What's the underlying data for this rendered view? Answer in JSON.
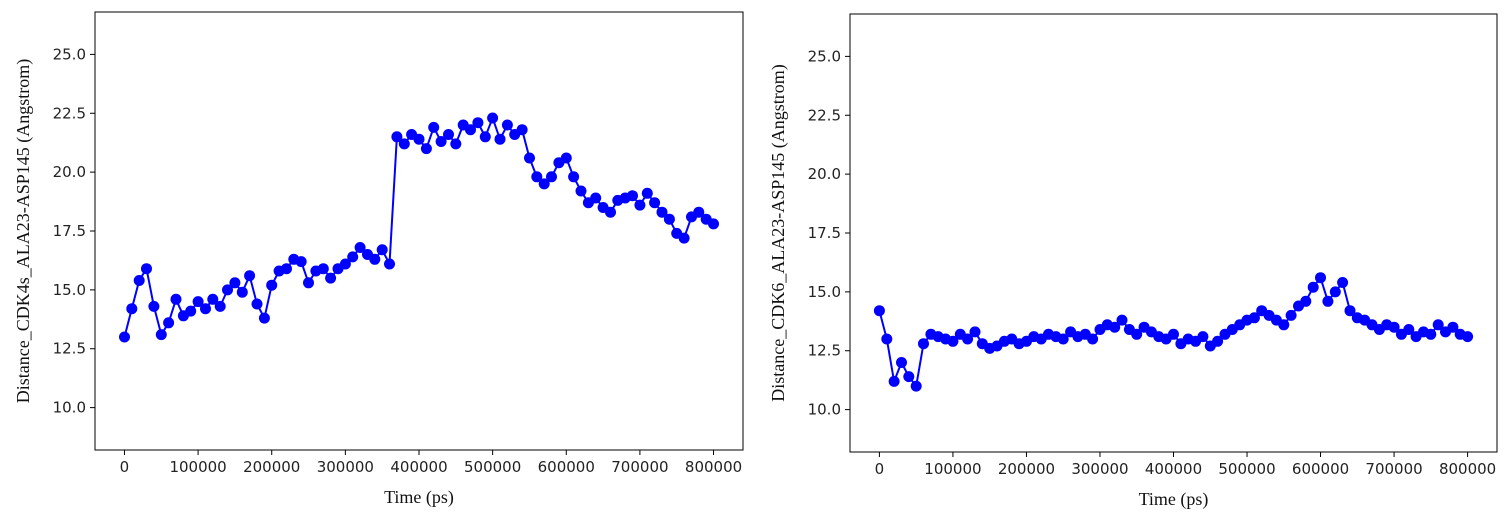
{
  "chart_data": [
    {
      "type": "line",
      "title": "",
      "xlabel": "Time (ps)",
      "ylabel": "Distance_CDK4s_ALA23-ASP145 (Angstrom)",
      "xlim": [
        -40000,
        840000
      ],
      "ylim": [
        8.2,
        26.8
      ],
      "xticks": [
        0,
        100000,
        200000,
        300000,
        400000,
        500000,
        600000,
        700000,
        800000
      ],
      "yticks": [
        "10.0",
        "12.5",
        "15.0",
        "17.5",
        "20.0",
        "22.5",
        "25.0"
      ],
      "grid": false,
      "marker": "circle",
      "series": [
        {
          "color": "#0000ff",
          "x": [
            0,
            10000,
            20000,
            30000,
            40000,
            50000,
            60000,
            70000,
            80000,
            90000,
            100000,
            110000,
            120000,
            130000,
            140000,
            150000,
            160000,
            170000,
            180000,
            190000,
            200000,
            210000,
            220000,
            230000,
            240000,
            250000,
            260000,
            270000,
            280000,
            290000,
            300000,
            310000,
            320000,
            330000,
            340000,
            350000,
            360000,
            370000,
            380000,
            390000,
            400000,
            410000,
            420000,
            430000,
            440000,
            450000,
            460000,
            470000,
            480000,
            490000,
            500000,
            510000,
            520000,
            530000,
            540000,
            550000,
            560000,
            570000,
            580000,
            590000,
            600000,
            610000,
            620000,
            630000,
            640000,
            650000,
            660000,
            670000,
            680000,
            690000,
            700000,
            710000,
            720000,
            730000,
            740000,
            750000,
            760000,
            770000,
            780000,
            790000,
            800000
          ],
          "y": [
            13.0,
            14.2,
            15.4,
            15.9,
            14.3,
            13.1,
            13.6,
            14.6,
            13.9,
            14.1,
            14.5,
            14.2,
            14.6,
            14.3,
            15.0,
            15.3,
            14.9,
            15.6,
            14.4,
            13.8,
            15.2,
            15.8,
            15.9,
            16.3,
            16.2,
            15.3,
            15.8,
            15.9,
            15.5,
            15.9,
            16.1,
            16.4,
            16.8,
            16.5,
            16.3,
            16.7,
            16.1,
            21.5,
            21.2,
            21.6,
            21.4,
            21.0,
            21.9,
            21.3,
            21.6,
            21.2,
            22.0,
            21.8,
            22.1,
            21.5,
            22.3,
            21.4,
            22.0,
            21.6,
            21.8,
            20.6,
            19.8,
            19.5,
            19.8,
            20.4,
            20.6,
            19.8,
            19.2,
            18.7,
            18.9,
            18.5,
            18.3,
            18.8,
            18.9,
            19.0,
            18.6,
            19.1,
            18.7,
            18.3,
            18.0,
            17.4,
            17.2,
            18.1,
            18.3,
            18.0,
            17.8
          ]
        }
      ]
    },
    {
      "type": "line",
      "title": "",
      "xlabel": "Time (ps)",
      "ylabel": "Distance_CDK6_ALA23-ASP145 (Angstrom)",
      "xlim": [
        -40000,
        840000
      ],
      "ylim": [
        8.2,
        26.8
      ],
      "xticks": [
        0,
        100000,
        200000,
        300000,
        400000,
        500000,
        600000,
        700000,
        800000
      ],
      "yticks": [
        "10.0",
        "12.5",
        "15.0",
        "17.5",
        "20.0",
        "22.5",
        "25.0"
      ],
      "grid": false,
      "marker": "circle",
      "series": [
        {
          "color": "#0000ff",
          "x": [
            0,
            10000,
            20000,
            30000,
            40000,
            50000,
            60000,
            70000,
            80000,
            90000,
            100000,
            110000,
            120000,
            130000,
            140000,
            150000,
            160000,
            170000,
            180000,
            190000,
            200000,
            210000,
            220000,
            230000,
            240000,
            250000,
            260000,
            270000,
            280000,
            290000,
            300000,
            310000,
            320000,
            330000,
            340000,
            350000,
            360000,
            370000,
            380000,
            390000,
            400000,
            410000,
            420000,
            430000,
            440000,
            450000,
            460000,
            470000,
            480000,
            490000,
            500000,
            510000,
            520000,
            530000,
            540000,
            550000,
            560000,
            570000,
            580000,
            590000,
            600000,
            610000,
            620000,
            630000,
            640000,
            650000,
            660000,
            670000,
            680000,
            690000,
            700000,
            710000,
            720000,
            730000,
            740000,
            750000,
            760000,
            770000,
            780000,
            790000,
            800000
          ],
          "y": [
            14.2,
            13.0,
            11.2,
            12.0,
            11.4,
            11.0,
            12.8,
            13.2,
            13.1,
            13.0,
            12.9,
            13.2,
            13.0,
            13.3,
            12.8,
            12.6,
            12.7,
            12.9,
            13.0,
            12.8,
            12.9,
            13.1,
            13.0,
            13.2,
            13.1,
            13.0,
            13.3,
            13.1,
            13.2,
            13.0,
            13.4,
            13.6,
            13.5,
            13.8,
            13.4,
            13.2,
            13.5,
            13.3,
            13.1,
            13.0,
            13.2,
            12.8,
            13.0,
            12.9,
            13.1,
            12.7,
            12.9,
            13.2,
            13.4,
            13.6,
            13.8,
            13.9,
            14.2,
            14.0,
            13.8,
            13.6,
            14.0,
            14.4,
            14.6,
            15.2,
            15.6,
            14.6,
            15.0,
            15.4,
            14.2,
            13.9,
            13.8,
            13.6,
            13.4,
            13.6,
            13.5,
            13.2,
            13.4,
            13.1,
            13.3,
            13.2,
            13.6,
            13.3,
            13.5,
            13.2,
            13.1
          ]
        }
      ]
    }
  ]
}
